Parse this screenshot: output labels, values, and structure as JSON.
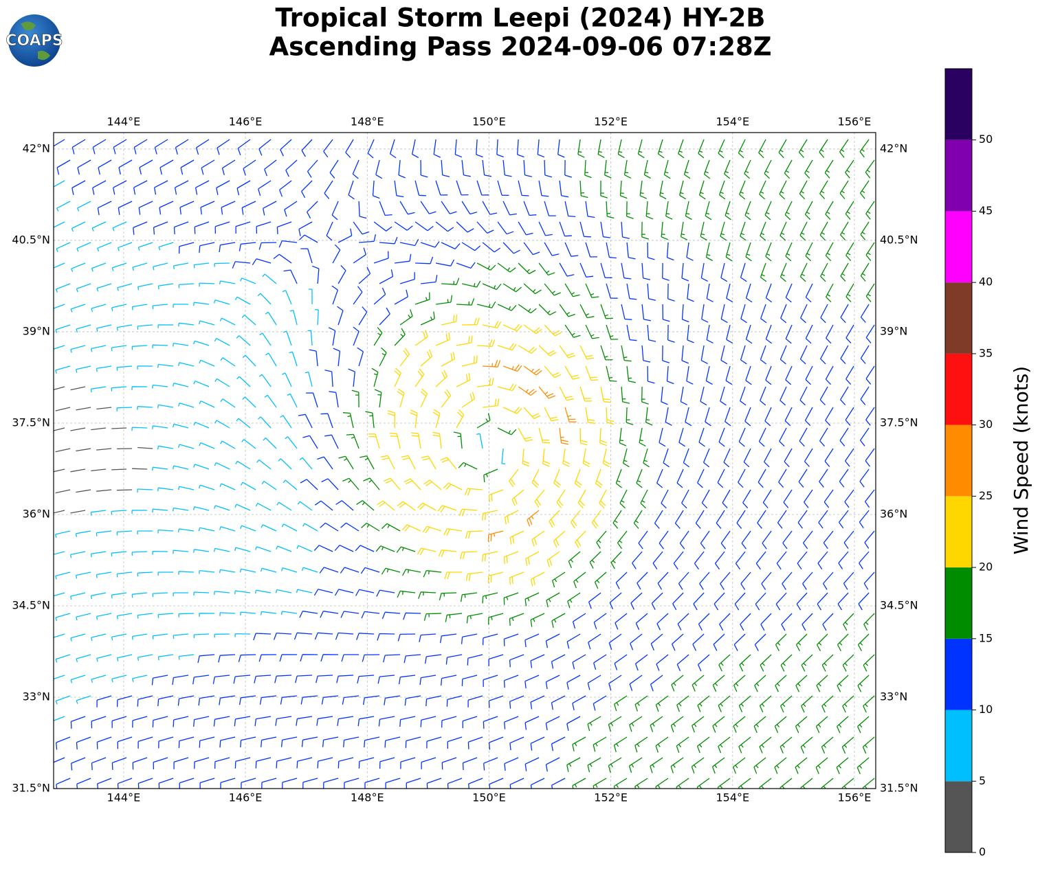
{
  "title": [
    "Tropical Storm Leepi (2024) HY-2B",
    "Ascending Pass 2024-09-06 07:28Z"
  ],
  "logo": "COAPS",
  "map": {
    "lonlim": [
      142.85,
      156.35
    ],
    "latlim": [
      31.5,
      42.27
    ],
    "lonticks": [
      {
        "value": 144,
        "label": "144°E"
      },
      {
        "value": 146,
        "label": "146°E"
      },
      {
        "value": 148,
        "label": "148°E"
      },
      {
        "value": 150,
        "label": "150°E"
      },
      {
        "value": 152,
        "label": "152°E"
      },
      {
        "value": 154,
        "label": "154°E"
      },
      {
        "value": 156,
        "label": "156°E"
      }
    ],
    "latticks": [
      {
        "value": 31.5,
        "label": "31.5°N"
      },
      {
        "value": 33,
        "label": "33°N"
      },
      {
        "value": 34.5,
        "label": "34.5°N"
      },
      {
        "value": 36,
        "label": "36°N"
      },
      {
        "value": 37.5,
        "label": "37.5°N"
      },
      {
        "value": 39,
        "label": "39°N"
      },
      {
        "value": 40.5,
        "label": "40.5°N"
      },
      {
        "value": 42,
        "label": "42°N"
      }
    ]
  },
  "colorbar": {
    "label": "Wind Speed (knots)",
    "lim": [
      0,
      55
    ],
    "ticks": [
      0,
      5,
      10,
      15,
      20,
      25,
      30,
      35,
      40,
      45,
      50
    ],
    "bounds": [
      0,
      5,
      10,
      15,
      20,
      25,
      30,
      35,
      40,
      45,
      50,
      55
    ],
    "colors": [
      "#555555",
      "#00bfff",
      "#0033ff",
      "#008c00",
      "#ffd700",
      "#ff8c00",
      "#ff1010",
      "#7f3a28",
      "#ff00ff",
      "#8000b0",
      "#2a0060"
    ]
  }
}
